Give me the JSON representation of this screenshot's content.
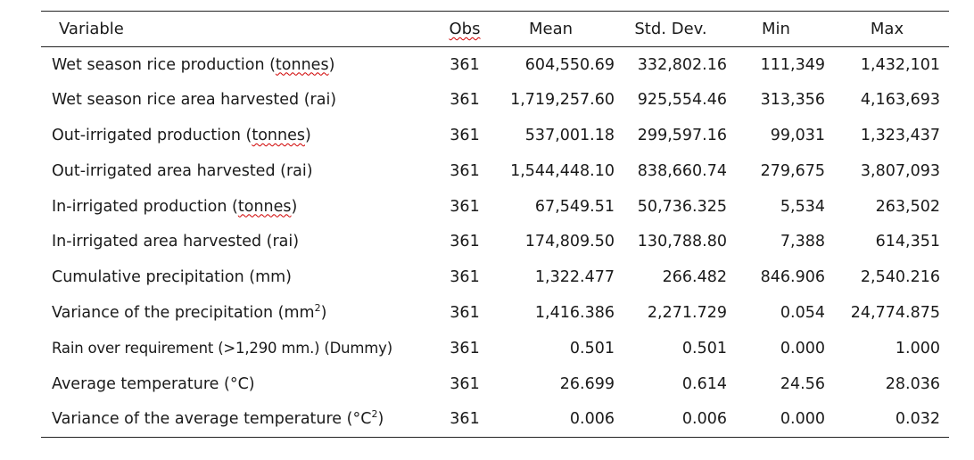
{
  "headers": {
    "variable": "Variable",
    "obs": "Obs",
    "mean": "Mean",
    "sd": "Std. Dev.",
    "min": "Min",
    "max": "Max"
  },
  "rows": [
    {
      "pre": "Wet season rice production (",
      "sq": "tonnes",
      "post": ")",
      "obs": "361",
      "mean": "604,550.69",
      "sd": "332,802.16",
      "min": "111,349",
      "max": "1,432,101"
    },
    {
      "pre": "Wet season rice area harvested (rai)",
      "sq": "",
      "post": "",
      "obs": "361",
      "mean": "1,719,257.60",
      "sd": "925,554.46",
      "min": "313,356",
      "max": "4,163,693"
    },
    {
      "pre": "Out-irrigated production (",
      "sq": "tonnes",
      "post": ")",
      "obs": "361",
      "mean": "537,001.18",
      "sd": "299,597.16",
      "min": "99,031",
      "max": "1,323,437"
    },
    {
      "pre": "Out-irrigated area harvested (rai)",
      "sq": "",
      "post": "",
      "obs": "361",
      "mean": "1,544,448.10",
      "sd": "838,660.74",
      "min": "279,675",
      "max": "3,807,093"
    },
    {
      "pre": "In-irrigated production (",
      "sq": "tonnes",
      "post": ")",
      "obs": "361",
      "mean": "67,549.51",
      "sd": "50,736.325",
      "min": "5,534",
      "max": "263,502"
    },
    {
      "pre": "In-irrigated area harvested (rai)",
      "sq": "",
      "post": "",
      "obs": "361",
      "mean": "174,809.50",
      "sd": "130,788.80",
      "min": "7,388",
      "max": "614,351"
    },
    {
      "pre": "Cumulative precipitation (mm)",
      "sq": "",
      "post": "",
      "obs": "361",
      "mean": "1,322.477",
      "sd": "266.482",
      "min": "846.906",
      "max": "2,540.216"
    },
    {
      "pre": "Variance of the precipitation (mm",
      "sup": "2",
      "post": ")",
      "obs": "361",
      "mean": "1,416.386",
      "sd": "2,271.729",
      "min": "0.054",
      "max": "24,774.875"
    },
    {
      "pre": "Rain over requirement (>1,290 mm.) (Dummy)",
      "sq": "",
      "post": "",
      "obs": "361",
      "mean": "0.501",
      "sd": "0.501",
      "min": "0.000",
      "max": "1.000"
    },
    {
      "pre": "Average temperature (°C)",
      "sq": "",
      "post": "",
      "obs": "361",
      "mean": "26.699",
      "sd": "0.614",
      "min": "24.56",
      "max": "28.036"
    },
    {
      "pre": "Variance of the average temperature (°C",
      "sup": "2",
      "post": ")",
      "obs": "361",
      "mean": "0.006",
      "sd": "0.006",
      "min": "0.000",
      "max": "0.032"
    }
  ]
}
